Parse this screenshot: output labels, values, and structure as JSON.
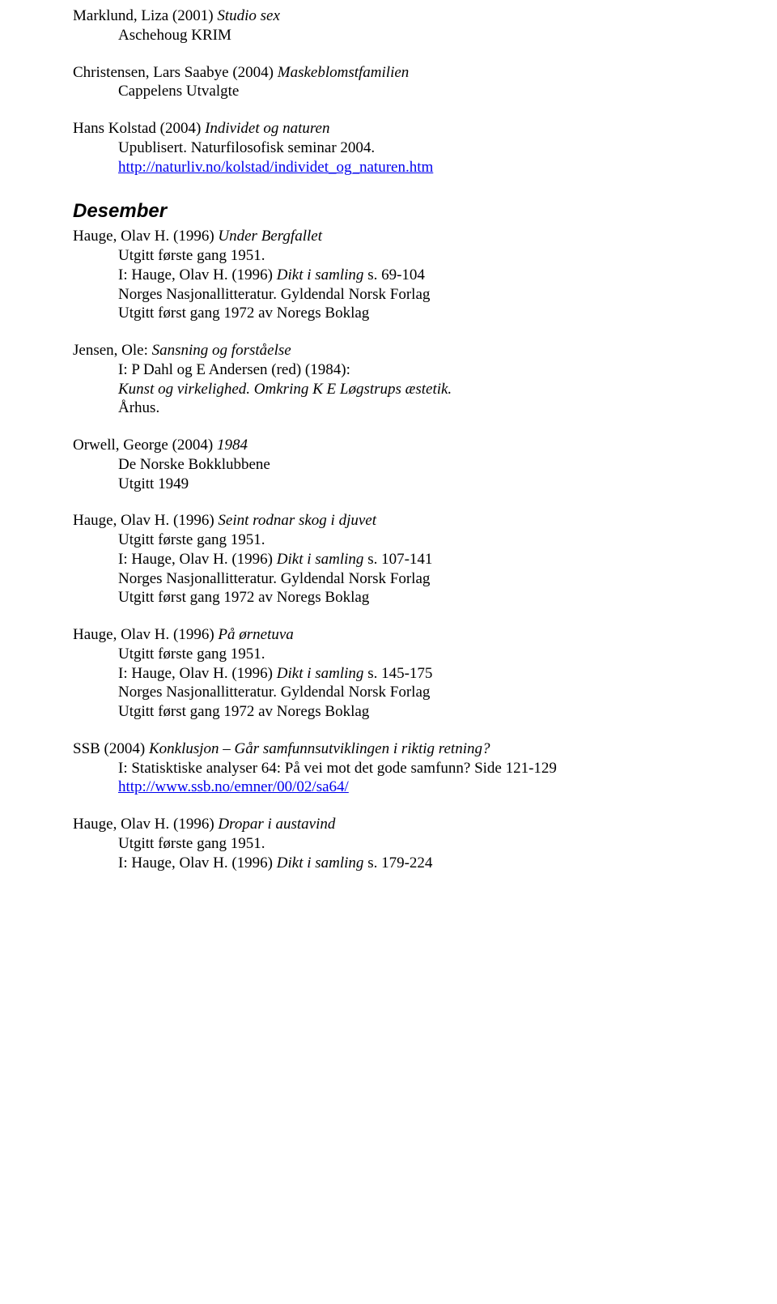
{
  "entries": [
    {
      "lines": [
        {
          "pre": "Marklund, Liza (2001) ",
          "it": "Studio sex",
          "post": "",
          "indent": false
        },
        {
          "pre": "Aschehoug KRIM",
          "it": "",
          "post": "",
          "indent": true
        }
      ]
    },
    {
      "lines": [
        {
          "pre": "Christensen, Lars Saabye (2004) ",
          "it": "Maskeblomstfamilien",
          "post": "",
          "indent": false
        },
        {
          "pre": "Cappelens Utvalgte",
          "it": "",
          "post": "",
          "indent": true
        }
      ]
    },
    {
      "lines": [
        {
          "pre": "Hans Kolstad (2004) ",
          "it": "Individet og naturen",
          "post": "",
          "indent": false
        },
        {
          "pre": "Upublisert. Naturfilosofisk seminar 2004.",
          "it": "",
          "post": "",
          "indent": true
        },
        {
          "link": "http://naturliv.no/kolstad/individet_og_naturen.htm",
          "indent": true
        }
      ]
    }
  ],
  "section": "Desember",
  "entries2": [
    {
      "lines": [
        {
          "pre": "Hauge, Olav H. (1996) ",
          "it": "Under Bergfallet",
          "post": "",
          "indent": false
        },
        {
          "pre": "Utgitt første gang 1951.",
          "it": "",
          "post": "",
          "indent": true
        },
        {
          "pre": "I: Hauge, Olav H. (1996) ",
          "it": "Dikt i samling",
          "post": " s. 69-104",
          "indent": true
        },
        {
          "pre": "Norges Nasjonallitteratur. Gyldendal Norsk Forlag",
          "it": "",
          "post": "",
          "indent": true
        },
        {
          "pre": "Utgitt først gang 1972 av Noregs Boklag",
          "it": "",
          "post": "",
          "indent": true
        }
      ]
    },
    {
      "lines": [
        {
          "pre": "Jensen, Ole: ",
          "it": "Sansning og forståelse",
          "post": "",
          "indent": false
        },
        {
          "pre": "I: P Dahl og E Andersen (red) (1984):",
          "it": "",
          "post": "",
          "indent": true
        },
        {
          "pre": "",
          "it": "Kunst og virkelighed. Omkring K E Løgstrups æstetik.",
          "post": "",
          "indent": true
        },
        {
          "pre": "Århus.",
          "it": "",
          "post": "",
          "indent": true
        }
      ]
    },
    {
      "lines": [
        {
          "pre": "Orwell, George (2004) ",
          "it": "1984",
          "post": "",
          "indent": false
        },
        {
          "pre": "De Norske Bokklubbene",
          "it": "",
          "post": "",
          "indent": true
        },
        {
          "pre": "Utgitt 1949",
          "it": "",
          "post": "",
          "indent": true
        }
      ]
    },
    {
      "lines": [
        {
          "pre": "Hauge, Olav H. (1996) ",
          "it": "Seint rodnar skog i djuvet",
          "post": "",
          "indent": false
        },
        {
          "pre": "Utgitt første gang 1951.",
          "it": "",
          "post": "",
          "indent": true
        },
        {
          "pre": "I: Hauge, Olav H. (1996) ",
          "it": "Dikt i samling",
          "post": " s. 107-141",
          "indent": true
        },
        {
          "pre": "Norges Nasjonallitteratur. Gyldendal Norsk Forlag",
          "it": "",
          "post": "",
          "indent": true
        },
        {
          "pre": "Utgitt først gang 1972 av Noregs Boklag",
          "it": "",
          "post": "",
          "indent": true
        }
      ]
    },
    {
      "lines": [
        {
          "pre": "Hauge, Olav H. (1996) ",
          "it": "På ørnetuva",
          "post": "",
          "indent": false
        },
        {
          "pre": "Utgitt første gang 1951.",
          "it": "",
          "post": "",
          "indent": true
        },
        {
          "pre": "I: Hauge, Olav H. (1996) ",
          "it": "Dikt i samling",
          "post": " s. 145-175",
          "indent": true
        },
        {
          "pre": "Norges Nasjonallitteratur. Gyldendal Norsk Forlag",
          "it": "",
          "post": "",
          "indent": true
        },
        {
          "pre": "Utgitt først gang 1972 av Noregs Boklag",
          "it": "",
          "post": "",
          "indent": true
        }
      ]
    },
    {
      "lines": [
        {
          "pre": "SSB (2004) ",
          "it": "Konklusjon – Går samfunnsutviklingen i riktig retning?",
          "post": "",
          "indent": false
        },
        {
          "pre": "I: Statisktiske analyser 64: På vei mot det gode samfunn? Side 121-129",
          "it": "",
          "post": "",
          "indent": true
        },
        {
          "link": "http://www.ssb.no/emner/00/02/sa64/",
          "indent": true
        }
      ]
    },
    {
      "lines": [
        {
          "pre": "Hauge, Olav H. (1996) ",
          "it": "Dropar i austavind",
          "post": "",
          "indent": false
        },
        {
          "pre": "Utgitt første gang 1951.",
          "it": "",
          "post": "",
          "indent": true
        },
        {
          "pre": "I: Hauge, Olav H. (1996) ",
          "it": "Dikt i samling",
          "post": " s. 179-224",
          "indent": true
        }
      ]
    }
  ]
}
